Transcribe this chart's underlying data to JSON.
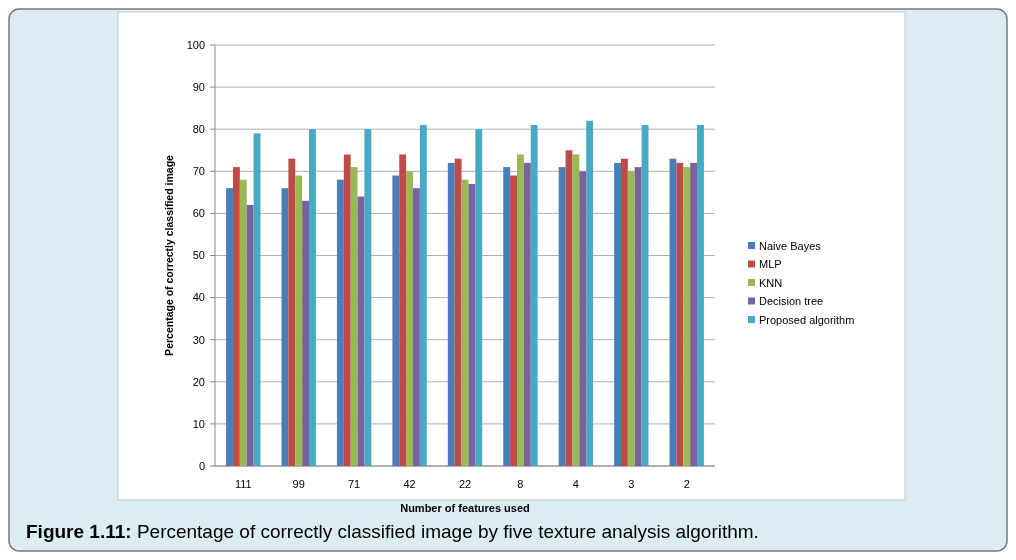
{
  "chart_data": {
    "type": "bar",
    "xlabel": "Number of features used",
    "ylabel": "Percentage of correctly classified  image",
    "categories": [
      "111",
      "99",
      "71",
      "42",
      "22",
      "8",
      "4",
      "3",
      "2"
    ],
    "series": [
      {
        "name": "Naive Bayes",
        "color": "#4a7ebb",
        "values": [
          66,
          66,
          68,
          69,
          72,
          71,
          71,
          72,
          73
        ]
      },
      {
        "name": "MLP",
        "color": "#be4b48",
        "values": [
          71,
          73,
          74,
          74,
          73,
          69,
          75,
          73,
          72
        ]
      },
      {
        "name": "KNN",
        "color": "#98b954",
        "values": [
          68,
          69,
          71,
          70,
          68,
          74,
          74,
          70,
          71
        ]
      },
      {
        "name": "Decision tree",
        "color": "#7d60a0",
        "values": [
          62,
          63,
          64,
          66,
          67,
          72,
          70,
          71,
          72
        ]
      },
      {
        "name": "Proposed algorithm",
        "color": "#46aac5",
        "values": [
          79,
          80,
          80,
          81,
          80,
          81,
          82,
          81,
          81
        ]
      }
    ],
    "ylim": [
      0,
      100
    ],
    "yticks": [
      0,
      10,
      20,
      30,
      40,
      50,
      60,
      70,
      80,
      90,
      100
    ],
    "grid": "y",
    "legend": "right",
    "annotations": [
      "Figure 1.11: Percentage of correctly classified image by five texture analysis algorithm."
    ]
  }
}
